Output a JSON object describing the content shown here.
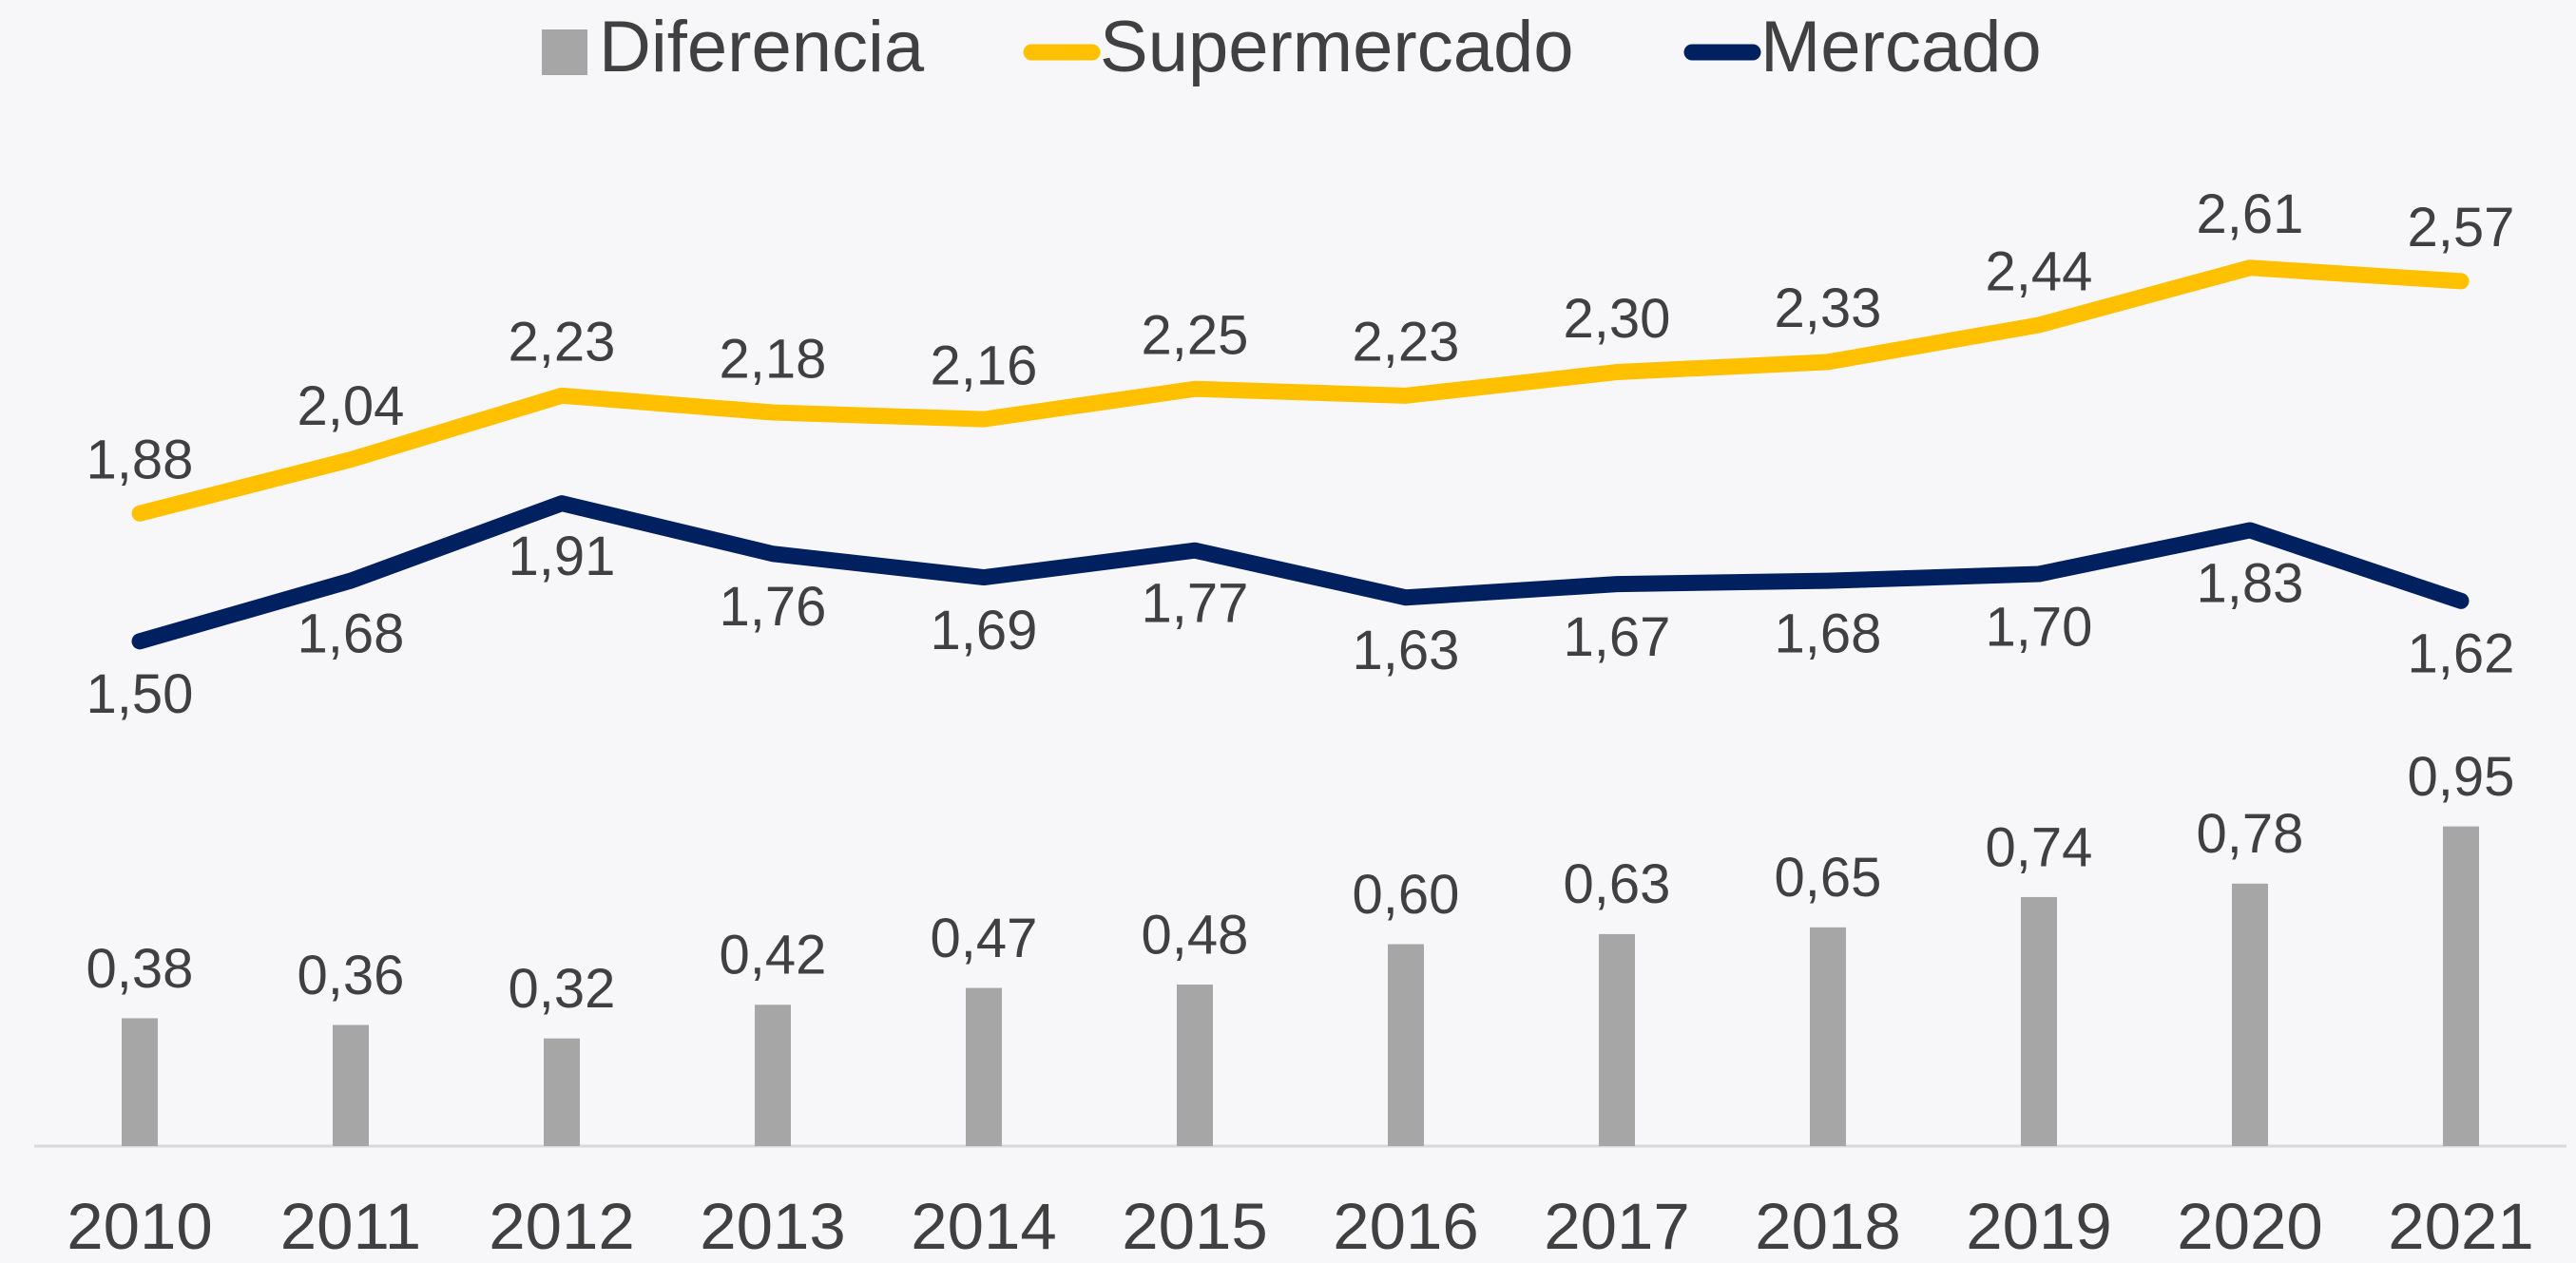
{
  "chart_data": {
    "type": "combo",
    "categories": [
      "2010",
      "2011",
      "2012",
      "2013",
      "2014",
      "2015",
      "2016",
      "2017",
      "2018",
      "2019",
      "2020",
      "2021"
    ],
    "series": [
      {
        "name": "Diferencia",
        "type": "bar",
        "color": "#a6a6a6",
        "values": [
          0.38,
          0.36,
          0.32,
          0.42,
          0.47,
          0.48,
          0.6,
          0.63,
          0.65,
          0.74,
          0.78,
          0.95
        ],
        "value_labels": [
          "0,38",
          "0,36",
          "0,32",
          "0,42",
          "0,47",
          "0,48",
          "0,60",
          "0,63",
          "0,65",
          "0,74",
          "0,78",
          "0,95"
        ]
      },
      {
        "name": "Supermercado",
        "type": "line",
        "color": "#ffc000",
        "values": [
          1.88,
          2.04,
          2.23,
          2.18,
          2.16,
          2.25,
          2.23,
          2.3,
          2.33,
          2.44,
          2.61,
          2.57
        ],
        "value_labels": [
          "1,88",
          "2,04",
          "2,23",
          "2,18",
          "2,16",
          "2,25",
          "2,23",
          "2,30",
          "2,33",
          "2,44",
          "2,61",
          "2,57"
        ]
      },
      {
        "name": "Mercado",
        "type": "line",
        "color": "#002060",
        "values": [
          1.5,
          1.68,
          1.91,
          1.76,
          1.69,
          1.77,
          1.63,
          1.67,
          1.68,
          1.7,
          1.83,
          1.62
        ],
        "value_labels": [
          "1,50",
          "1,68",
          "1,91",
          "1,76",
          "1,69",
          "1,77",
          "1,63",
          "1,67",
          "1,68",
          "1,70",
          "1,83",
          "1,62"
        ]
      }
    ],
    "ylim": [
      0,
      3.4
    ],
    "legend": "top"
  }
}
